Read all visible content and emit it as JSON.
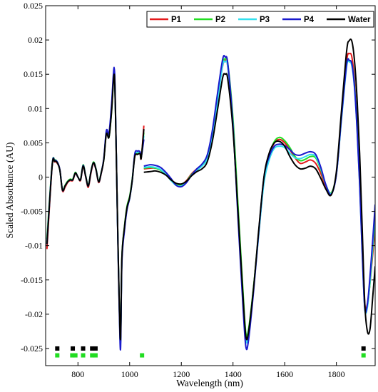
{
  "chart_data": {
    "type": "line",
    "xlabel": "Wavelength (nm)",
    "ylabel": "Scaled Absorbance (AU)",
    "xlim": [
      675,
      1950
    ],
    "ylim": [
      -0.0275,
      0.025
    ],
    "xticks": [
      800,
      1000,
      1200,
      1400,
      1600,
      1800
    ],
    "xtick_labels": [
      "800",
      "1000",
      "1200",
      "1400",
      "1600",
      "1800"
    ],
    "yticks": [
      -0.025,
      -0.02,
      -0.015,
      -0.01,
      -0.005,
      0,
      0.005,
      0.01,
      0.015,
      0.02,
      0.025
    ],
    "ytick_labels": [
      "-0.025",
      "-0.02",
      "-0.015",
      "-0.01",
      "-0.005",
      "0",
      "0.005",
      "0.01",
      "0.015",
      "0.02",
      "0.025"
    ],
    "grid": false,
    "legend_position": "top-right",
    "x_segment1": [
      680,
      700,
      710,
      720,
      730,
      740,
      750,
      760,
      770,
      780,
      790,
      800,
      810,
      820,
      830,
      840,
      850,
      860,
      870,
      880,
      890,
      900,
      910,
      920,
      930,
      940,
      945,
      950,
      955,
      960,
      965,
      970,
      980,
      990,
      1000,
      1010,
      1020,
      1030,
      1040,
      1045,
      1055
    ],
    "x_segment2": [
      1055,
      1080,
      1100,
      1120,
      1140,
      1160,
      1180,
      1200,
      1220,
      1240,
      1260,
      1280,
      1300,
      1320,
      1340,
      1360,
      1370,
      1380,
      1400,
      1420,
      1440,
      1450,
      1460,
      1480,
      1500,
      1520,
      1540,
      1560,
      1580,
      1600,
      1620,
      1640,
      1660,
      1680,
      1700,
      1720,
      1740,
      1760,
      1780,
      1800,
      1820,
      1840,
      1850,
      1860,
      1870,
      1880,
      1890,
      1900,
      1910,
      1920,
      1930,
      1940,
      1950
    ],
    "series": [
      {
        "name": "P1",
        "color": "#e41a1c",
        "segment1": [
          -0.0105,
          0.0015,
          0.0022,
          0.002,
          0.001,
          -0.002,
          -0.0015,
          -0.0008,
          -0.0005,
          -0.0005,
          0.0005,
          0.0,
          -0.0005,
          0.0015,
          0.0,
          -0.0015,
          0.0005,
          0.002,
          0.001,
          -0.0008,
          0.0005,
          0.0025,
          0.0065,
          0.006,
          0.01,
          0.0155,
          0.01,
          0.0,
          -0.01,
          -0.019,
          -0.024,
          -0.012,
          -0.0075,
          -0.0045,
          -0.003,
          -0.0005,
          0.003,
          0.0035,
          0.0035,
          0.0028,
          0.0075
        ],
        "segment2": [
          0.0012,
          0.0013,
          0.0013,
          0.001,
          0.0005,
          -0.0003,
          -0.001,
          -0.0011,
          -0.0005,
          0.0005,
          0.0012,
          0.0018,
          0.003,
          0.0065,
          0.0115,
          0.0162,
          0.017,
          0.016,
          0.008,
          -0.005,
          -0.018,
          -0.0232,
          -0.0225,
          -0.016,
          -0.008,
          -0.0005,
          0.003,
          0.005,
          0.0055,
          0.005,
          0.004,
          0.0028,
          0.002,
          0.0022,
          0.0025,
          0.002,
          0.0005,
          -0.0015,
          -0.0025,
          0.0005,
          0.009,
          0.017,
          0.018,
          0.0175,
          0.014,
          0.008,
          0.0,
          -0.01,
          -0.0185,
          -0.0185,
          -0.0155,
          -0.0115,
          -0.0075
        ]
      },
      {
        "name": "P2",
        "color": "#22dd22",
        "segment1": [
          -0.009,
          0.0018,
          0.0025,
          0.0022,
          0.001,
          -0.0018,
          -0.0012,
          -0.0006,
          -0.0003,
          -0.0003,
          0.0007,
          0.0,
          -0.0003,
          0.0018,
          0.0002,
          -0.0012,
          0.0008,
          0.0022,
          0.0012,
          -0.0006,
          0.0007,
          0.0025,
          0.0065,
          0.0058,
          0.0095,
          0.0152,
          0.0098,
          0.0,
          -0.0098,
          -0.0188,
          -0.0238,
          -0.0118,
          -0.0072,
          -0.0042,
          -0.0028,
          -0.0003,
          0.0032,
          0.0035,
          0.0035,
          0.003,
          0.0065
        ],
        "segment2": [
          0.0013,
          0.0014,
          0.0013,
          0.001,
          0.0004,
          -0.0004,
          -0.0011,
          -0.0012,
          -0.0006,
          0.0004,
          0.0011,
          0.0017,
          0.0028,
          0.0062,
          0.0112,
          0.0165,
          0.0172,
          0.0165,
          0.0085,
          -0.0045,
          -0.0175,
          -0.0228,
          -0.0222,
          -0.0158,
          -0.0078,
          -0.0004,
          0.0032,
          0.0052,
          0.0058,
          0.0053,
          0.0043,
          0.003,
          0.0024,
          0.0026,
          0.003,
          0.0028,
          0.001,
          -0.0012,
          -0.0023,
          0.0005,
          0.0088,
          0.0165,
          0.017,
          0.0165,
          0.0135,
          0.0075,
          -0.0005,
          -0.0105,
          -0.019,
          -0.0188,
          -0.0155,
          -0.0108,
          -0.006
        ]
      },
      {
        "name": "P3",
        "color": "#33e0ee",
        "segment1": [
          -0.0095,
          0.0016,
          0.0023,
          0.0021,
          0.001,
          -0.0019,
          -0.0013,
          -0.0007,
          -0.0004,
          -0.0004,
          0.0006,
          0.0,
          -0.0004,
          0.0016,
          0.0001,
          -0.0013,
          0.0007,
          0.0021,
          0.0011,
          -0.0007,
          0.0006,
          0.0026,
          0.0066,
          0.0061,
          0.0102,
          0.0156,
          0.0101,
          0.0,
          -0.0101,
          -0.0191,
          -0.0242,
          -0.0121,
          -0.0076,
          -0.0046,
          -0.0031,
          -0.0006,
          0.0031,
          0.0036,
          0.0036,
          0.0029,
          0.006
        ],
        "segment2": [
          0.0014,
          0.0015,
          0.0014,
          0.0011,
          0.0004,
          -0.0005,
          -0.0012,
          -0.0013,
          -0.0007,
          0.0003,
          0.001,
          0.0016,
          0.0027,
          0.006,
          0.011,
          0.0163,
          0.0168,
          0.016,
          0.0075,
          -0.006,
          -0.0188,
          -0.0238,
          -0.023,
          -0.0162,
          -0.0082,
          -0.0008,
          0.0025,
          0.0042,
          0.0045,
          0.0043,
          0.0035,
          0.0028,
          0.0027,
          0.003,
          0.0033,
          0.003,
          0.0012,
          -0.0012,
          -0.0024,
          0.0004,
          0.0085,
          0.0162,
          0.0168,
          0.0162,
          0.013,
          0.007,
          -0.001,
          -0.011,
          -0.0192,
          -0.019,
          -0.0152,
          -0.0102,
          -0.005
        ]
      },
      {
        "name": "P4",
        "color": "#1a1acc",
        "segment1": [
          -0.0098,
          0.0017,
          0.0024,
          0.0022,
          0.0011,
          -0.0019,
          -0.0013,
          -0.0007,
          -0.0004,
          -0.0004,
          0.0006,
          0.0,
          -0.0004,
          0.0017,
          0.0001,
          -0.0013,
          0.0007,
          0.0021,
          0.0011,
          -0.0007,
          0.0006,
          0.0027,
          0.0068,
          0.0064,
          0.0106,
          0.016,
          0.0104,
          0.0,
          -0.0104,
          -0.0195,
          -0.025,
          -0.0125,
          -0.0078,
          -0.0047,
          -0.0031,
          -0.0005,
          0.0034,
          0.0038,
          0.0037,
          0.003,
          0.0055
        ],
        "segment2": [
          0.0016,
          0.0018,
          0.0017,
          0.0014,
          0.0007,
          -0.0002,
          -0.0012,
          -0.0014,
          -0.0008,
          0.0003,
          0.0012,
          0.0019,
          0.0032,
          0.0068,
          0.0122,
          0.0172,
          0.0175,
          0.0165,
          0.0075,
          -0.0065,
          -0.0198,
          -0.0248,
          -0.0238,
          -0.0165,
          -0.0078,
          0.0,
          0.003,
          0.0045,
          0.0048,
          0.0046,
          0.004,
          0.0033,
          0.0032,
          0.0035,
          0.0037,
          0.0033,
          0.0014,
          -0.0012,
          -0.0025,
          0.0004,
          0.0088,
          0.0165,
          0.017,
          0.0165,
          0.0132,
          0.007,
          -0.001,
          -0.011,
          -0.0192,
          -0.0185,
          -0.0145,
          -0.0095,
          -0.004
        ]
      },
      {
        "name": "Water",
        "color": "#000000",
        "segment1": [
          -0.0098,
          0.0016,
          0.0023,
          0.0021,
          0.001,
          -0.0019,
          -0.0013,
          -0.0007,
          -0.0004,
          -0.0004,
          0.0006,
          0.0,
          -0.0004,
          0.0016,
          0.0001,
          -0.0013,
          0.0007,
          0.0021,
          0.0011,
          -0.0007,
          0.0006,
          0.0025,
          0.0063,
          0.0058,
          0.0095,
          0.015,
          0.0097,
          0.0,
          -0.0098,
          -0.0185,
          -0.0235,
          -0.0118,
          -0.0073,
          -0.0044,
          -0.003,
          -0.0005,
          0.003,
          0.0033,
          0.0034,
          0.0028,
          0.007
        ],
        "segment2": [
          0.0007,
          0.0008,
          0.0009,
          0.0007,
          0.0003,
          -0.0004,
          -0.0009,
          -0.001,
          -0.0006,
          0.0002,
          0.0008,
          0.0012,
          0.0022,
          0.0052,
          0.0098,
          0.0145,
          0.015,
          0.0142,
          0.0068,
          -0.0055,
          -0.0182,
          -0.0233,
          -0.0226,
          -0.016,
          -0.0075,
          0.0001,
          0.0035,
          0.005,
          0.0052,
          0.0045,
          0.003,
          0.0018,
          0.0012,
          0.0013,
          0.0016,
          0.0012,
          -0.0002,
          -0.0018,
          -0.0026,
          0.0008,
          0.0098,
          0.0185,
          0.0199,
          0.0198,
          0.017,
          0.0115,
          0.0035,
          -0.0075,
          -0.0185,
          -0.0225,
          -0.0222,
          -0.0178,
          -0.013
        ]
      }
    ],
    "significance_markers": [
      {
        "y": -0.025,
        "color": "#000000",
        "x": [
          720,
          780,
          820,
          855,
          868,
          1905
        ]
      },
      {
        "y": -0.026,
        "color": "#22dd22",
        "x": [
          720,
          778,
          790,
          820,
          855,
          868,
          1048,
          1905
        ]
      }
    ]
  }
}
